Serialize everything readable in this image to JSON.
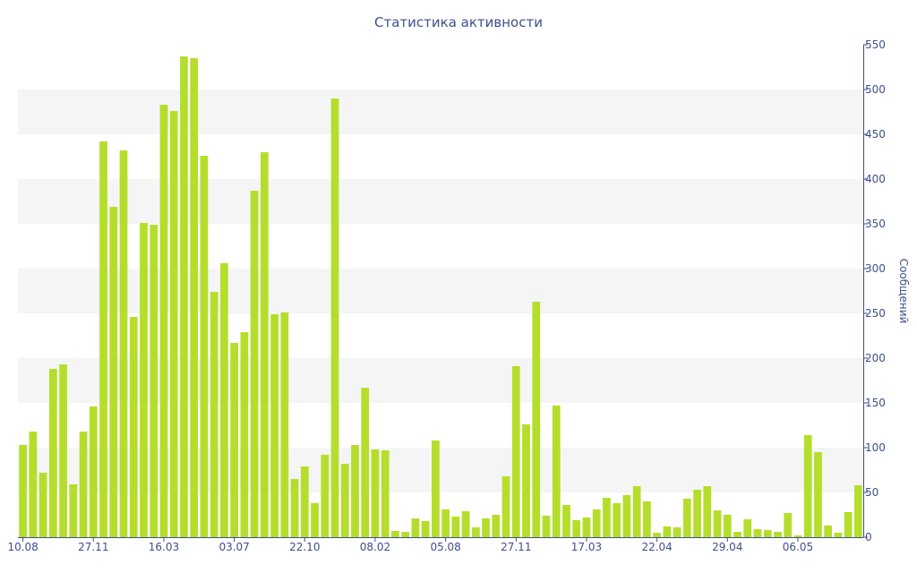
{
  "chart_data": {
    "type": "bar",
    "title": "Статистика активности",
    "ylabel": "Сообщений",
    "xlabel": "",
    "ylim": [
      0,
      550
    ],
    "y_ticks": [
      0,
      50,
      100,
      150,
      200,
      250,
      300,
      350,
      400,
      450,
      500,
      550
    ],
    "y_axis_position": "right",
    "x_tick_labels": [
      {
        "label": "10.08",
        "index": 0
      },
      {
        "label": "27.11",
        "index": 7
      },
      {
        "label": "16.03",
        "index": 14
      },
      {
        "label": "03.07",
        "index": 21
      },
      {
        "label": "22.10",
        "index": 28
      },
      {
        "label": "08.02",
        "index": 35
      },
      {
        "label": "05.08",
        "index": 42
      },
      {
        "label": "27.11",
        "index": 49
      },
      {
        "label": "17.03",
        "index": 56
      },
      {
        "label": "22.04",
        "index": 63
      },
      {
        "label": "29.04",
        "index": 70
      },
      {
        "label": "06.05",
        "index": 77
      }
    ],
    "values": [
      103,
      118,
      72,
      188,
      193,
      59,
      118,
      146,
      442,
      369,
      432,
      246,
      351,
      349,
      483,
      476,
      537,
      535,
      426,
      274,
      306,
      217,
      229,
      387,
      430,
      249,
      251,
      65,
      79,
      38,
      92,
      490,
      82,
      103,
      167,
      98,
      97,
      7,
      6,
      21,
      18,
      108,
      31,
      23,
      29,
      11,
      21,
      25,
      68,
      191,
      126,
      263,
      24,
      147,
      36,
      19,
      22,
      31,
      44,
      38,
      47,
      57,
      40,
      5,
      12,
      11,
      43,
      53,
      57,
      30,
      25,
      6,
      20,
      9,
      8,
      6,
      27,
      2,
      114,
      95,
      13,
      5,
      28,
      58
    ],
    "bar_color": "#b5de2c",
    "band_color": "#f5f5f5",
    "text_color": "#3e4f8c",
    "axis_color": "#3e4f8c",
    "grid_bands": "alternating horizontal"
  }
}
